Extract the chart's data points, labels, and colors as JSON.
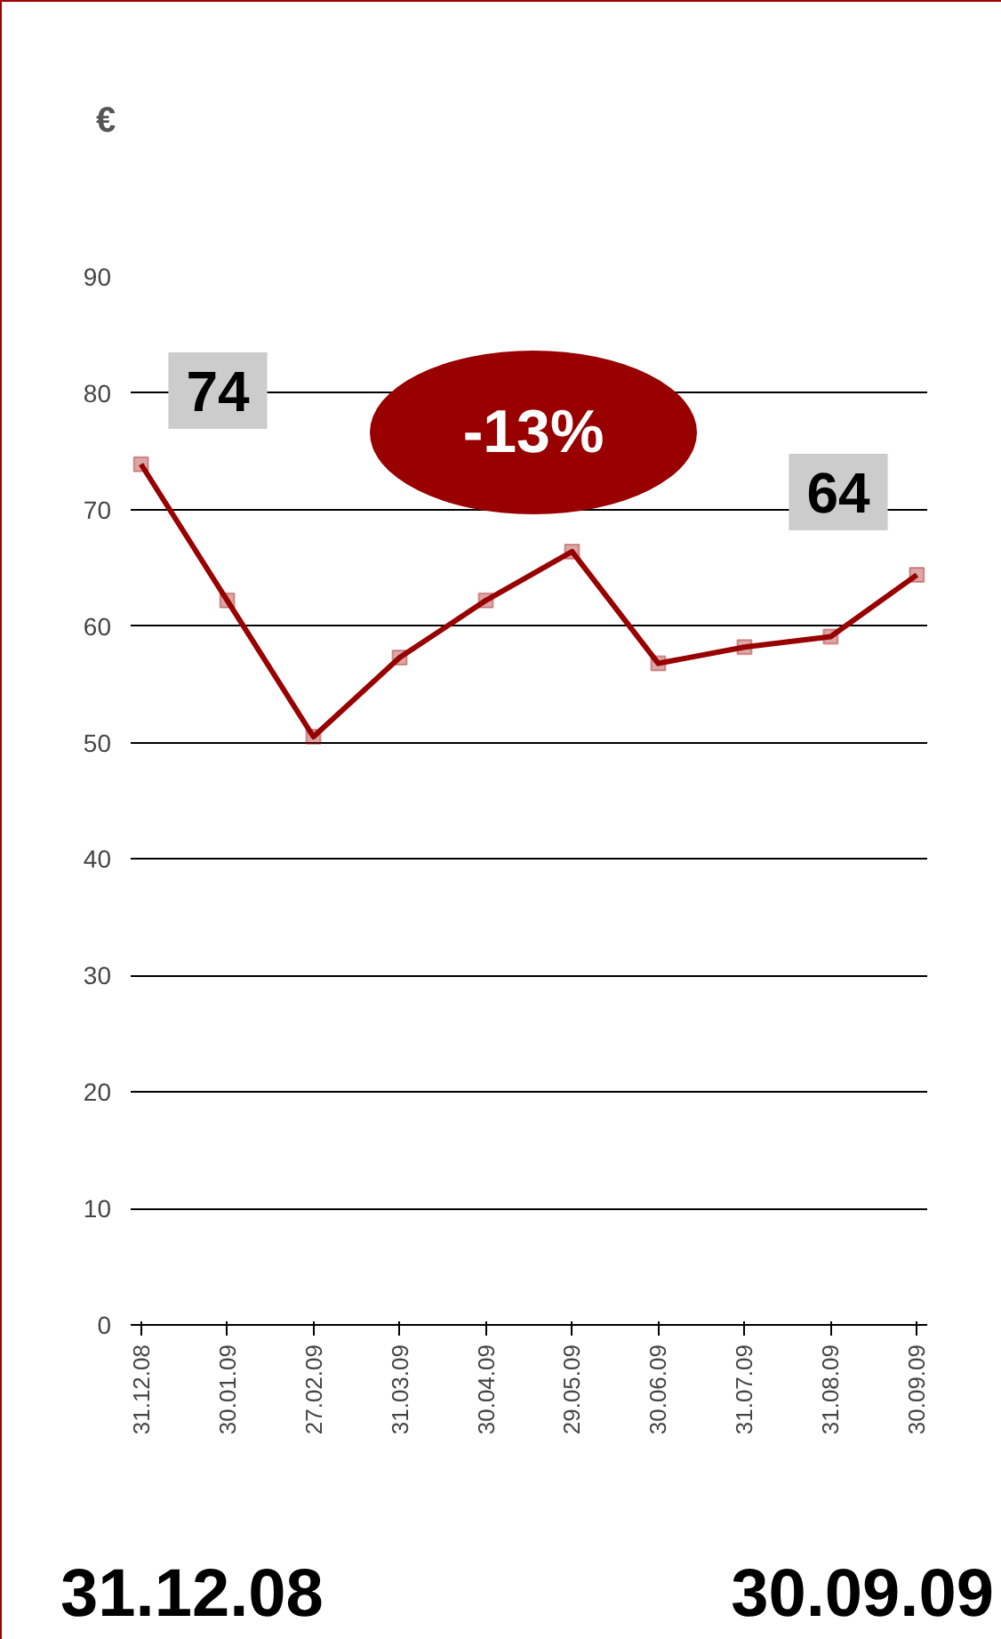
{
  "chart_data": {
    "type": "line",
    "ylabel": "€",
    "categories": [
      "31.12.08",
      "30.01.09",
      "27.02.09",
      "31.03.09",
      "30.04.09",
      "29.05.09",
      "30.06.09",
      "31.07.09",
      "31.08.09",
      "30.09.09"
    ],
    "series": [
      {
        "color": "#990000",
        "values": [
          73.9,
          62.2,
          50.5,
          57.3,
          62.2,
          66.4,
          56.8,
          58.2,
          59.1,
          64.4
        ]
      }
    ],
    "marker": "square",
    "line_style": "solid",
    "ylim": [
      0,
      90
    ],
    "yticks": [
      0,
      10,
      20,
      30,
      40,
      50,
      60,
      70,
      80,
      90
    ],
    "grid": "y",
    "annotations": [
      "74",
      "-13%",
      "64",
      "31.12.08",
      "30.09.09"
    ]
  }
}
